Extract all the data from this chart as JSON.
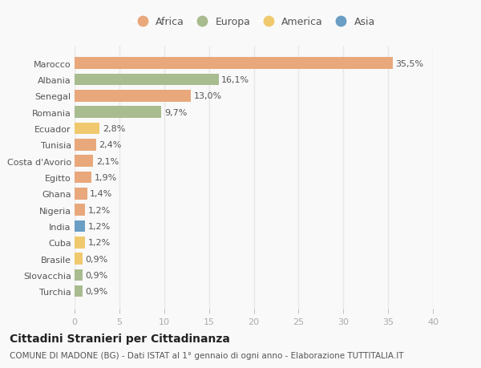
{
  "countries": [
    "Marocco",
    "Albania",
    "Senegal",
    "Romania",
    "Ecuador",
    "Tunisia",
    "Costa d'Avorio",
    "Egitto",
    "Ghana",
    "Nigeria",
    "India",
    "Cuba",
    "Brasile",
    "Slovacchia",
    "Turchia"
  ],
  "values": [
    35.5,
    16.1,
    13.0,
    9.7,
    2.8,
    2.4,
    2.1,
    1.9,
    1.4,
    1.2,
    1.2,
    1.2,
    0.9,
    0.9,
    0.9
  ],
  "labels": [
    "35,5%",
    "16,1%",
    "13,0%",
    "9,7%",
    "2,8%",
    "2,4%",
    "2,1%",
    "1,9%",
    "1,4%",
    "1,2%",
    "1,2%",
    "1,2%",
    "0,9%",
    "0,9%",
    "0,9%"
  ],
  "continent": [
    "Africa",
    "Europa",
    "Africa",
    "Europa",
    "America",
    "Africa",
    "Africa",
    "Africa",
    "Africa",
    "Africa",
    "Asia",
    "America",
    "America",
    "Europa",
    "Europa"
  ],
  "colors": {
    "Africa": "#E8A87C",
    "Europa": "#A8BC8F",
    "America": "#F0C96E",
    "Asia": "#6A9EC5"
  },
  "legend_order": [
    "Africa",
    "Europa",
    "America",
    "Asia"
  ],
  "title": "Cittadini Stranieri per Cittadinanza",
  "subtitle": "COMUNE DI MADONE (BG) - Dati ISTAT al 1° gennaio di ogni anno - Elaborazione TUTTITALIA.IT",
  "xlim": [
    0,
    40
  ],
  "xticks": [
    0,
    5,
    10,
    15,
    20,
    25,
    30,
    35,
    40
  ],
  "bg_color": "#f9f9f9",
  "grid_color": "#e8e8e8",
  "bar_height": 0.72,
  "title_fontsize": 10,
  "subtitle_fontsize": 7.5,
  "label_fontsize": 8,
  "tick_fontsize": 8,
  "legend_fontsize": 9
}
